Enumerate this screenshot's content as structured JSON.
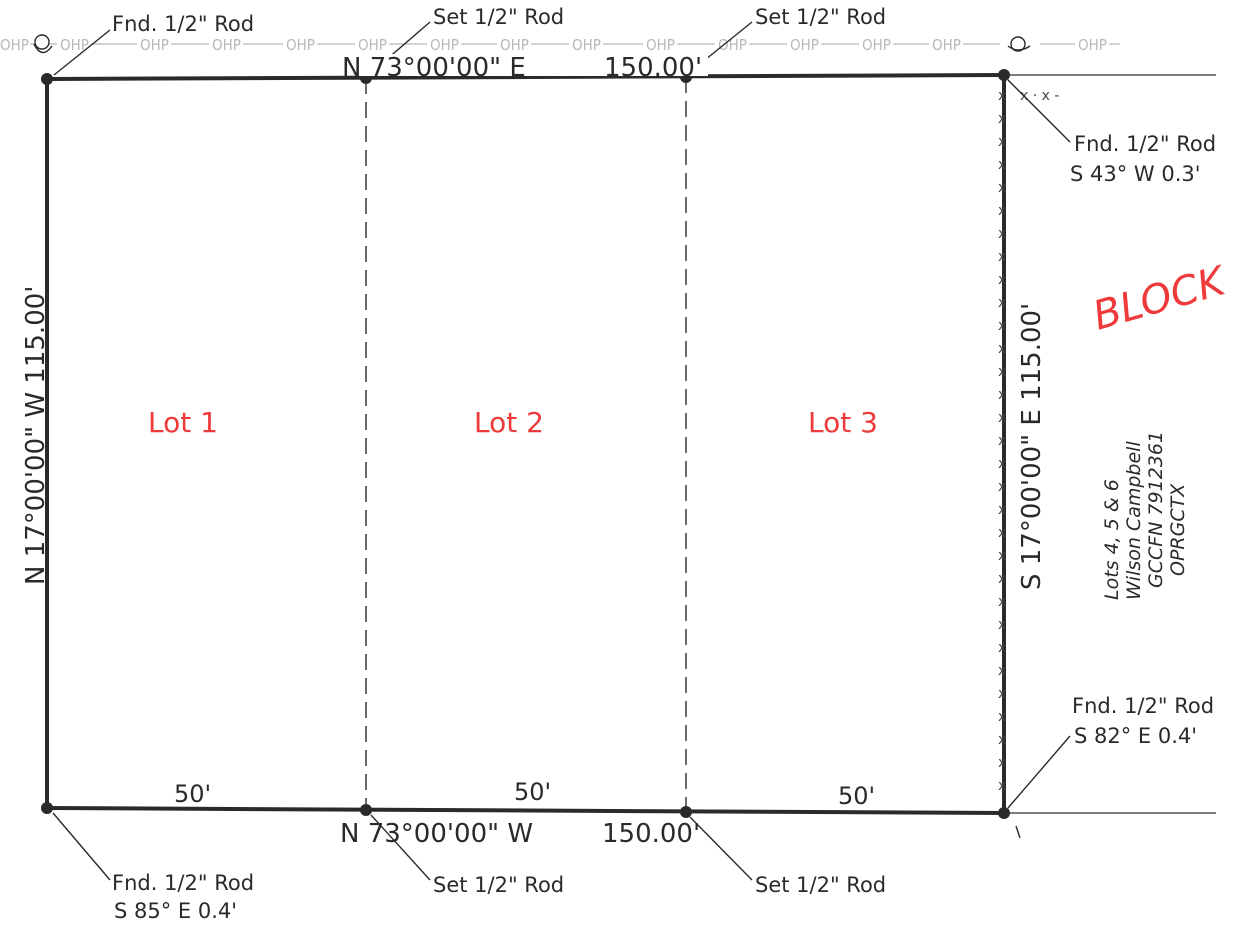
{
  "overhead_line": {
    "label": "OHP",
    "start_fragment": "OHP"
  },
  "lots": [
    "Lot 1",
    "Lot 2",
    "Lot 3"
  ],
  "bearings": {
    "north": "N 73°00'00\" E",
    "north_dist": "150.00'",
    "south": "N 73°00'00\" W",
    "south_dist": "150.00'",
    "west": "N 17°00'00\" W   115.00'",
    "east": "S 17°00'00\" E   115.00'"
  },
  "frontages": [
    "50'",
    "50'",
    "50'"
  ],
  "monuments": {
    "nw": "Fnd. 1/2\" Rod",
    "n1": "Set 1/2\" Rod",
    "n2": "Set 1/2\" Rod",
    "ne_line1": "Fnd. 1/2\" Rod",
    "ne_line2": "S 43° W 0.3'",
    "se_line1": "Fnd. 1/2\" Rod",
    "se_line2": "S 82° E 0.4'",
    "sw_line1": "Fnd. 1/2\" Rod",
    "sw_line2": "S 85° E 0.4'",
    "s1": "Set 1/2\" Rod",
    "s2": "Set 1/2\" Rod"
  },
  "block_stamp": "BLOCK",
  "adjoiner": {
    "line1": "Lots 4, 5 & 6",
    "line2": "Wilson Campbell",
    "line3": "GCCFN 7912361",
    "line4": "OPRGCTX"
  },
  "fence_mark": "x",
  "fence_segment": "x · x -"
}
